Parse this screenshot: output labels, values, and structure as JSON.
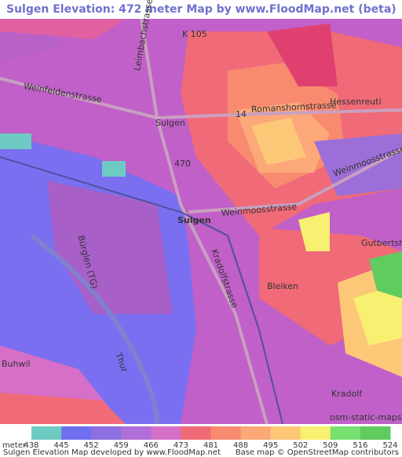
{
  "header": {
    "title": "Sulgen Elevation: 472 meter Map by www.FloodMap.net (beta)"
  },
  "map": {
    "labels": [
      "K 105",
      "Leimbachstrasse",
      "Weinfeldenstrasse",
      "Sulgen",
      "14",
      "Romanshornstrasse",
      "Hessenreuti",
      "470",
      "Weinmoosstrasse",
      "Weinmoosstrasse",
      "Sulgen",
      "Bürglen (TG)",
      "Kradolfstrasse",
      "Bleiken",
      "Gutbertsha",
      "Thur",
      "Buhwil",
      "Kradolf",
      "osm-static-maps"
    ]
  },
  "legend": {
    "unit": "meter",
    "ticks": [
      438,
      445,
      452,
      459,
      466,
      473,
      481,
      488,
      495,
      502,
      509,
      516,
      524
    ],
    "colors": [
      "#6ecbc3",
      "#6f6fef",
      "#8c6fe0",
      "#b06fd8",
      "#d66fc8",
      "#f06a78",
      "#f88a70",
      "#fca878",
      "#fcc878",
      "#f8f070",
      "#78e070",
      "#60cc60"
    ]
  },
  "footer": {
    "left": "Sulgen Elevation Map developed by www.FloodMap.net",
    "right": "Base map © OpenStreetMap contributors"
  }
}
